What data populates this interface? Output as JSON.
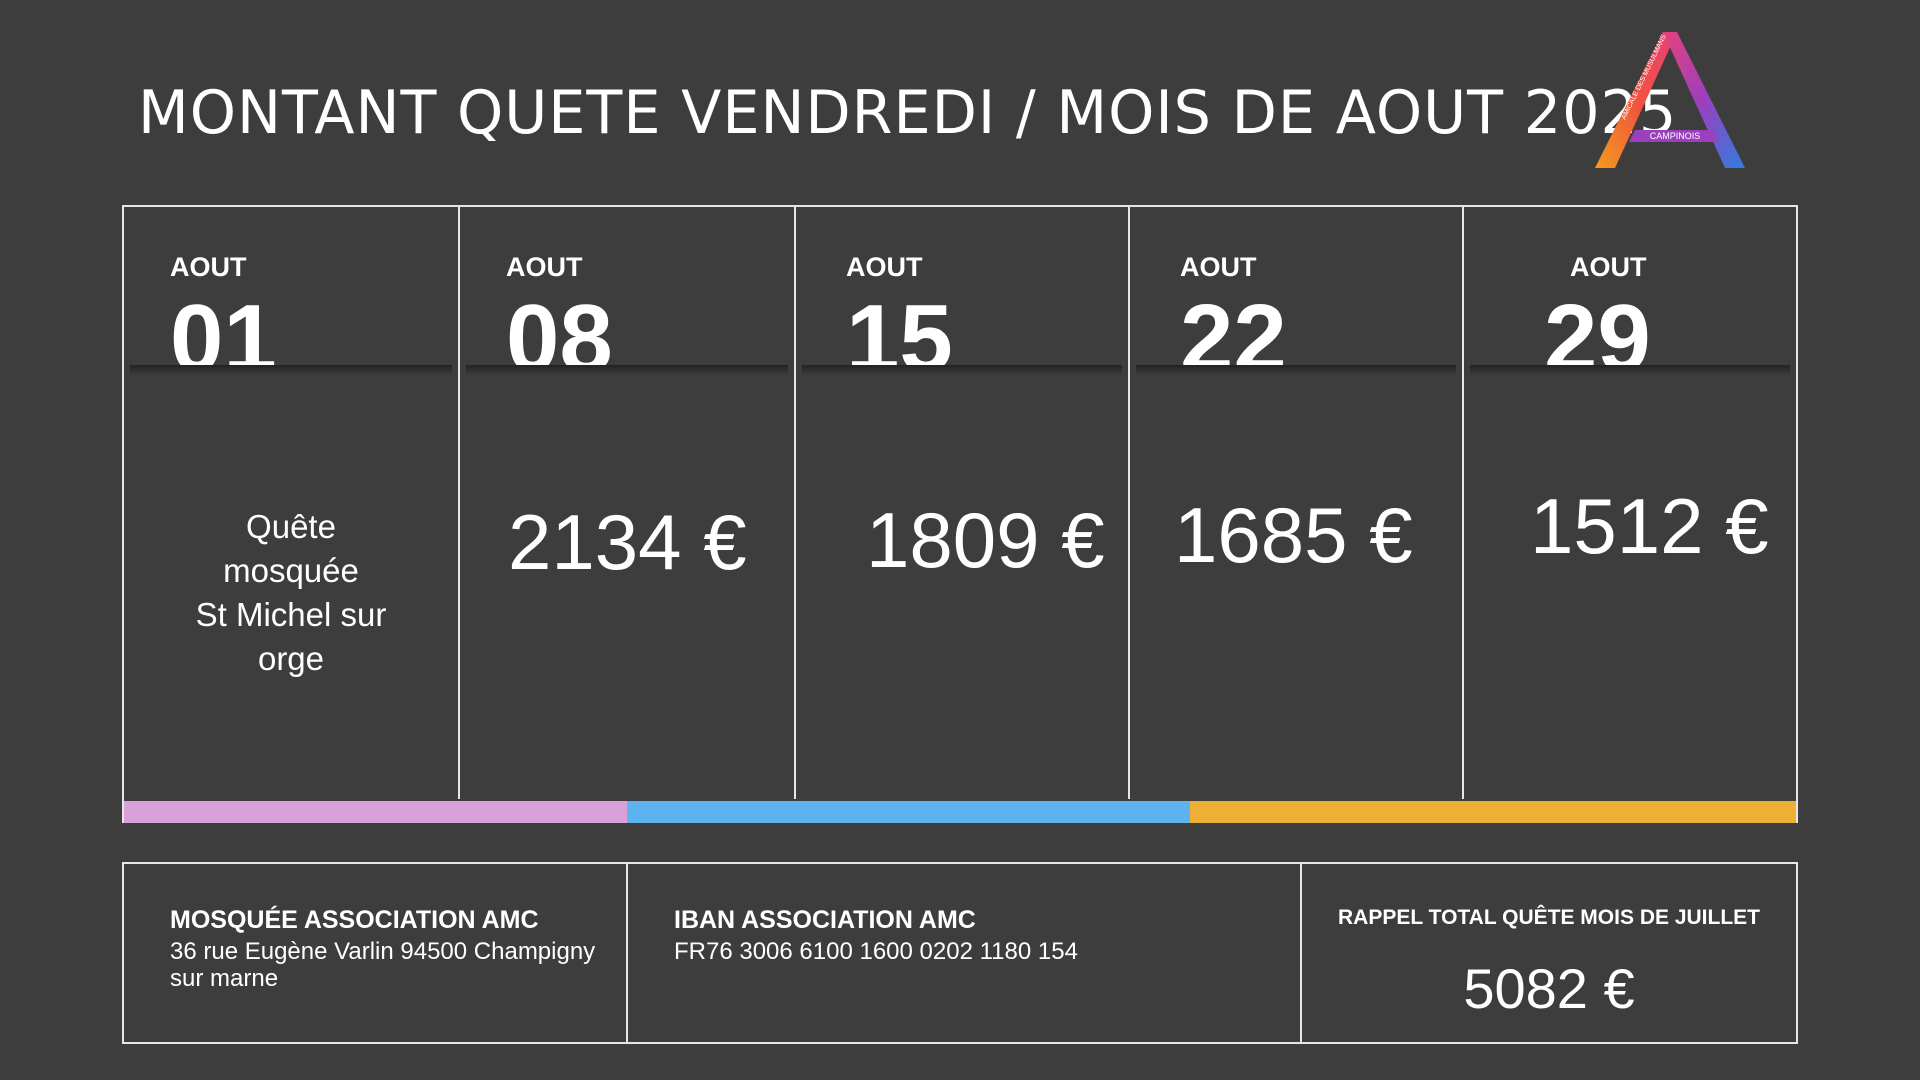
{
  "title": "MONTANT QUETE VENDREDI / MOIS DE AOUT 2025",
  "logo": {
    "text": "CAMPINOIS",
    "arc_text": "AMICALE DES MUSULMANS"
  },
  "colors": {
    "background": "#3d3d3d",
    "pink": "#d9a0d9",
    "blue": "#5cb3f0",
    "orange": "#eeb034"
  },
  "weeks": [
    {
      "month": "AOUT",
      "day": "01",
      "note_lines": [
        "Quête",
        "mosquée",
        "St Michel sur",
        "orge"
      ]
    },
    {
      "month": "AOUT",
      "day": "08",
      "amount": "2134 €"
    },
    {
      "month": "AOUT",
      "day": "15",
      "amount": "1809 €"
    },
    {
      "month": "AOUT",
      "day": "22",
      "amount": "1685 €"
    },
    {
      "month": "AOUT",
      "day": "29",
      "amount": "1512 €"
    }
  ],
  "footer": {
    "mosque": {
      "heading": "MOSQUÉE ASSOCIATION AMC",
      "address": "36 rue Eugène Varlin 94500 Champigny sur marne"
    },
    "iban": {
      "heading": "IBAN ASSOCIATION AMC",
      "value": "FR76 3006 6100 1600 0202 1180 154"
    },
    "reminder": {
      "heading": "RAPPEL TOTAL QUÊTE MOIS DE JUILLET",
      "total": "5082 €"
    }
  }
}
